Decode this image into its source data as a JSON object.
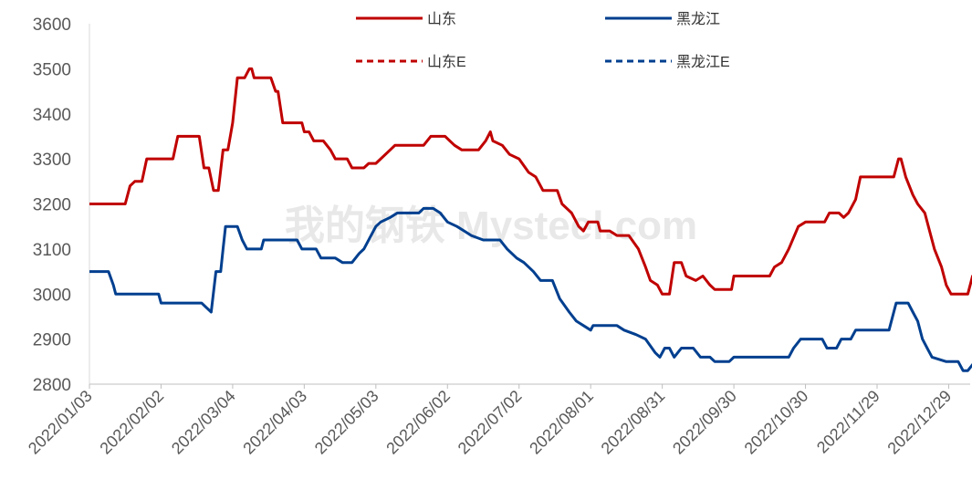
{
  "chart_data": {
    "type": "line",
    "x_tick_labels": [
      "2022/01/03",
      "2022/02/02",
      "2022/03/04",
      "2022/04/03",
      "2022/05/03",
      "2022/06/02",
      "2022/07/02",
      "2022/08/01",
      "2022/08/31",
      "2022/09/30",
      "2022/10/30",
      "2022/11/29",
      "2022/12/29"
    ],
    "y_ticks": [
      2800,
      2900,
      3000,
      3100,
      3200,
      3300,
      3400,
      3500,
      3600
    ],
    "ylim": [
      2800,
      3600
    ],
    "xlim": [
      "2022/01/03",
      "2023/01/07"
    ],
    "legend": [
      "山东",
      "黑龙江",
      "山东E",
      "黑龙江E"
    ],
    "legend_position": "top",
    "watermark": "我的钢铁 Mysteel.com",
    "series": [
      {
        "name": "山东",
        "color": "#C00000",
        "style": "solid",
        "points": [
          [
            "2022/01/03",
            3200
          ],
          [
            "2022/01/18",
            3200
          ],
          [
            "2022/01/20",
            3240
          ],
          [
            "2022/01/22",
            3250
          ],
          [
            "2022/01/25",
            3250
          ],
          [
            "2022/01/27",
            3300
          ],
          [
            "2022/02/02",
            3300
          ],
          [
            "2022/02/07",
            3300
          ],
          [
            "2022/02/09",
            3350
          ],
          [
            "2022/02/18",
            3350
          ],
          [
            "2022/02/20",
            3280
          ],
          [
            "2022/02/22",
            3280
          ],
          [
            "2022/02/24",
            3230
          ],
          [
            "2022/02/26",
            3230
          ],
          [
            "2022/02/28",
            3320
          ],
          [
            "2022/03/02",
            3320
          ],
          [
            "2022/03/04",
            3380
          ],
          [
            "2022/03/06",
            3480
          ],
          [
            "2022/03/09",
            3480
          ],
          [
            "2022/03/11",
            3500
          ],
          [
            "2022/03/12",
            3500
          ],
          [
            "2022/03/13",
            3480
          ],
          [
            "2022/03/20",
            3480
          ],
          [
            "2022/03/22",
            3450
          ],
          [
            "2022/03/23",
            3450
          ],
          [
            "2022/03/25",
            3380
          ],
          [
            "2022/04/02",
            3380
          ],
          [
            "2022/04/03",
            3360
          ],
          [
            "2022/04/05",
            3360
          ],
          [
            "2022/04/07",
            3340
          ],
          [
            "2022/04/11",
            3340
          ],
          [
            "2022/04/14",
            3320
          ],
          [
            "2022/04/16",
            3300
          ],
          [
            "2022/04/21",
            3300
          ],
          [
            "2022/04/23",
            3280
          ],
          [
            "2022/04/28",
            3280
          ],
          [
            "2022/04/30",
            3290
          ],
          [
            "2022/05/03",
            3290
          ],
          [
            "2022/05/05",
            3300
          ],
          [
            "2022/05/09",
            3320
          ],
          [
            "2022/05/11",
            3330
          ],
          [
            "2022/05/23",
            3330
          ],
          [
            "2022/05/26",
            3350
          ],
          [
            "2022/06/01",
            3350
          ],
          [
            "2022/06/03",
            3340
          ],
          [
            "2022/06/05",
            3330
          ],
          [
            "2022/06/08",
            3320
          ],
          [
            "2022/06/15",
            3320
          ],
          [
            "2022/06/18",
            3340
          ],
          [
            "2022/06/20",
            3360
          ],
          [
            "2022/06/21",
            3340
          ],
          [
            "2022/06/25",
            3330
          ],
          [
            "2022/06/28",
            3310
          ],
          [
            "2022/07/02",
            3300
          ],
          [
            "2022/07/06",
            3270
          ],
          [
            "2022/07/09",
            3260
          ],
          [
            "2022/07/12",
            3230
          ],
          [
            "2022/07/18",
            3230
          ],
          [
            "2022/07/20",
            3200
          ],
          [
            "2022/07/24",
            3180
          ],
          [
            "2022/07/27",
            3150
          ],
          [
            "2022/07/29",
            3140
          ],
          [
            "2022/07/31",
            3160
          ],
          [
            "2022/08/04",
            3160
          ],
          [
            "2022/08/05",
            3140
          ],
          [
            "2022/08/09",
            3140
          ],
          [
            "2022/08/12",
            3130
          ],
          [
            "2022/08/17",
            3130
          ],
          [
            "2022/08/21",
            3100
          ],
          [
            "2022/08/24",
            3060
          ],
          [
            "2022/08/26",
            3030
          ],
          [
            "2022/08/29",
            3020
          ],
          [
            "2022/08/31",
            3000
          ],
          [
            "2022/09/03",
            3000
          ],
          [
            "2022/09/05",
            3070
          ],
          [
            "2022/09/08",
            3070
          ],
          [
            "2022/09/10",
            3040
          ],
          [
            "2022/09/14",
            3030
          ],
          [
            "2022/09/17",
            3040
          ],
          [
            "2022/09/20",
            3020
          ],
          [
            "2022/09/22",
            3010
          ],
          [
            "2022/09/29",
            3010
          ],
          [
            "2022/09/30",
            3040
          ],
          [
            "2022/10/15",
            3040
          ],
          [
            "2022/10/17",
            3060
          ],
          [
            "2022/10/20",
            3070
          ],
          [
            "2022/10/23",
            3100
          ],
          [
            "2022/10/27",
            3150
          ],
          [
            "2022/10/30",
            3160
          ],
          [
            "2022/11/07",
            3160
          ],
          [
            "2022/11/09",
            3180
          ],
          [
            "2022/11/13",
            3180
          ],
          [
            "2022/11/15",
            3170
          ],
          [
            "2022/11/17",
            3180
          ],
          [
            "2022/11/20",
            3210
          ],
          [
            "2022/11/22",
            3260
          ],
          [
            "2022/12/06",
            3260
          ],
          [
            "2022/12/08",
            3300
          ],
          [
            "2022/12/09",
            3300
          ],
          [
            "2022/12/11",
            3260
          ],
          [
            "2022/12/14",
            3220
          ],
          [
            "2022/12/16",
            3200
          ],
          [
            "2022/12/19",
            3180
          ],
          [
            "2022/12/23",
            3100
          ],
          [
            "2022/12/26",
            3060
          ],
          [
            "2022/12/28",
            3020
          ],
          [
            "2022/12/30",
            3000
          ],
          [
            "2023/01/06",
            3000
          ],
          [
            "2023/01/08",
            3040
          ],
          [
            "2023/01/14",
            3040
          ]
        ]
      },
      {
        "name": "黑龙江",
        "color": "#003F8F",
        "style": "solid",
        "points": [
          [
            "2022/01/03",
            3050
          ],
          [
            "2022/01/11",
            3050
          ],
          [
            "2022/01/13",
            3020
          ],
          [
            "2022/01/14",
            3000
          ],
          [
            "2022/01/28",
            3000
          ],
          [
            "2022/02/01",
            3000
          ],
          [
            "2022/02/02",
            2980
          ],
          [
            "2022/02/19",
            2980
          ],
          [
            "2022/02/21",
            2970
          ],
          [
            "2022/02/23",
            2960
          ],
          [
            "2022/02/25",
            3050
          ],
          [
            "2022/02/27",
            3050
          ],
          [
            "2022/02/28",
            3100
          ],
          [
            "2022/03/01",
            3150
          ],
          [
            "2022/03/06",
            3150
          ],
          [
            "2022/03/08",
            3120
          ],
          [
            "2022/03/10",
            3100
          ],
          [
            "2022/03/16",
            3100
          ],
          [
            "2022/03/17",
            3120
          ],
          [
            "2022/03/31",
            3120
          ],
          [
            "2022/04/02",
            3100
          ],
          [
            "2022/04/08",
            3100
          ],
          [
            "2022/04/10",
            3080
          ],
          [
            "2022/04/16",
            3080
          ],
          [
            "2022/04/19",
            3070
          ],
          [
            "2022/04/23",
            3070
          ],
          [
            "2022/04/26",
            3090
          ],
          [
            "2022/04/28",
            3100
          ],
          [
            "2022/05/03",
            3150
          ],
          [
            "2022/05/05",
            3160
          ],
          [
            "2022/05/09",
            3170
          ],
          [
            "2022/05/12",
            3180
          ],
          [
            "2022/05/21",
            3180
          ],
          [
            "2022/05/23",
            3190
          ],
          [
            "2022/05/27",
            3190
          ],
          [
            "2022/05/30",
            3180
          ],
          [
            "2022/06/02",
            3160
          ],
          [
            "2022/06/06",
            3150
          ],
          [
            "2022/06/09",
            3140
          ],
          [
            "2022/06/12",
            3130
          ],
          [
            "2022/06/17",
            3120
          ],
          [
            "2022/06/24",
            3120
          ],
          [
            "2022/06/27",
            3100
          ],
          [
            "2022/07/01",
            3080
          ],
          [
            "2022/07/04",
            3070
          ],
          [
            "2022/07/08",
            3050
          ],
          [
            "2022/07/11",
            3030
          ],
          [
            "2022/07/16",
            3030
          ],
          [
            "2022/07/19",
            2990
          ],
          [
            "2022/07/23",
            2960
          ],
          [
            "2022/07/26",
            2940
          ],
          [
            "2022/07/29",
            2930
          ],
          [
            "2022/08/01",
            2920
          ],
          [
            "2022/08/02",
            2930
          ],
          [
            "2022/08/12",
            2930
          ],
          [
            "2022/08/15",
            2920
          ],
          [
            "2022/08/20",
            2910
          ],
          [
            "2022/08/24",
            2900
          ],
          [
            "2022/08/28",
            2870
          ],
          [
            "2022/08/30",
            2860
          ],
          [
            "2022/09/01",
            2880
          ],
          [
            "2022/09/03",
            2880
          ],
          [
            "2022/09/05",
            2860
          ],
          [
            "2022/09/08",
            2880
          ],
          [
            "2022/09/13",
            2880
          ],
          [
            "2022/09/16",
            2860
          ],
          [
            "2022/09/20",
            2860
          ],
          [
            "2022/09/22",
            2850
          ],
          [
            "2022/09/28",
            2850
          ],
          [
            "2022/09/30",
            2860
          ],
          [
            "2022/10/23",
            2860
          ],
          [
            "2022/10/25",
            2880
          ],
          [
            "2022/10/28",
            2900
          ],
          [
            "2022/11/06",
            2900
          ],
          [
            "2022/11/08",
            2880
          ],
          [
            "2022/11/12",
            2880
          ],
          [
            "2022/11/14",
            2900
          ],
          [
            "2022/11/18",
            2900
          ],
          [
            "2022/11/20",
            2920
          ],
          [
            "2022/12/04",
            2920
          ],
          [
            "2022/12/06",
            2960
          ],
          [
            "2022/12/07",
            2980
          ],
          [
            "2022/12/12",
            2980
          ],
          [
            "2022/12/14",
            2960
          ],
          [
            "2022/12/16",
            2940
          ],
          [
            "2022/12/18",
            2900
          ],
          [
            "2022/12/20",
            2880
          ],
          [
            "2022/12/22",
            2860
          ],
          [
            "2022/12/28",
            2850
          ],
          [
            "2023/01/02",
            2850
          ],
          [
            "2023/01/04",
            2830
          ],
          [
            "2023/01/06",
            2830
          ],
          [
            "2023/01/09",
            2850
          ],
          [
            "2023/01/14",
            2850
          ]
        ]
      },
      {
        "name": "山东E",
        "color": "#C00000",
        "style": "dashed",
        "points": [
          [
            "2023/01/08",
            3040
          ],
          [
            "2023/01/14",
            3040
          ]
        ]
      },
      {
        "name": "黑龙江E",
        "color": "#003F8F",
        "style": "dashed",
        "points": [
          [
            "2023/01/09",
            2850
          ],
          [
            "2023/01/14",
            2850
          ]
        ]
      }
    ]
  }
}
